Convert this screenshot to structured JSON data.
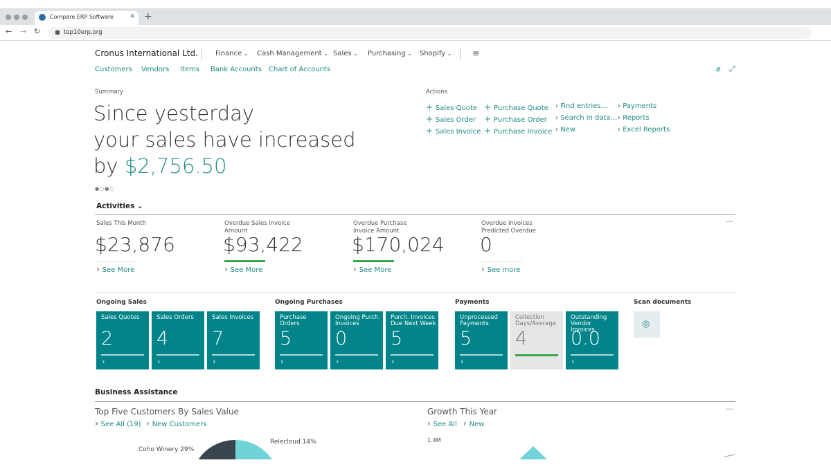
{
  "browser": {
    "tab_title": "Compare ERP Software",
    "url": "top10erp.org"
  },
  "nav": {
    "company": "Cronus International Ltd.",
    "menus": [
      "Finance",
      "Cash Management",
      "Sales",
      "Purchasing",
      "Shopify"
    ],
    "links": [
      "Customers",
      "Vendors",
      "Items",
      "Bank Accounts",
      "Chart of Accounts"
    ]
  },
  "summary": {
    "label": "Summary",
    "lines": [
      "Since yesterday",
      "your sales have increased",
      "by"
    ],
    "amount": "$2,756.50"
  },
  "actions": {
    "label": "Actions",
    "columns": [
      [
        "Sales Quote",
        "Sales Order",
        "Sales Invoice"
      ],
      [
        "Purchase Quote",
        "Purchase Order",
        "Purchase Invoice"
      ],
      [
        "Find entries...",
        "Search in data...",
        "New"
      ],
      [
        "Payments",
        "Reports",
        "Excel Reports"
      ]
    ]
  },
  "activities": {
    "title": "Activities",
    "kpis": [
      {
        "label": "Sales This Month",
        "value": "$23,876",
        "link": "See More"
      },
      {
        "label": "Overdue Sales Invoice Amount",
        "value": "$93,422",
        "link": "See More"
      },
      {
        "label": "Overdue Purchase Invoice Amount",
        "value": "$170,024",
        "link": "See More"
      },
      {
        "label": "Overdue Invoices Predicted Overdue",
        "value": "0",
        "link": "See more"
      }
    ]
  },
  "tile_groups": [
    {
      "title": "Ongoing Sales",
      "tiles": [
        {
          "label": "Sales Quotes",
          "value": "2"
        },
        {
          "label": "Sales Orders",
          "value": "4"
        },
        {
          "label": "Sales Invoices",
          "value": "7"
        }
      ]
    },
    {
      "title": "Ongoing Purchases",
      "tiles": [
        {
          "label": "Purchase Orders",
          "value": "5"
        },
        {
          "label": "Ongoing Purch. Invoices",
          "value": "0"
        },
        {
          "label": "Purch. Invoices Due Next Week",
          "value": "5"
        }
      ]
    },
    {
      "title": "Payments",
      "tiles": [
        {
          "label": "Unprocessed Payments",
          "value": "5"
        },
        {
          "label": "Collection Days/Average",
          "value": "4"
        },
        {
          "label": "Outstanding Vendor Invoices",
          "value": "0.0"
        }
      ]
    },
    {
      "title": "Scan documents",
      "tiles": []
    }
  ],
  "business_assistance": {
    "title": "Business Assistance",
    "panels": [
      {
        "title": "Top Five Customers By Sales Value",
        "links": [
          "See All (19)",
          "New Customers"
        ],
        "labels": [
          "Coho Winery 29%",
          "Relecloud 14%"
        ]
      },
      {
        "title": "Growth This Year",
        "links": [
          "See All",
          "New"
        ],
        "labels": [
          "1.4M"
        ]
      }
    ]
  }
}
